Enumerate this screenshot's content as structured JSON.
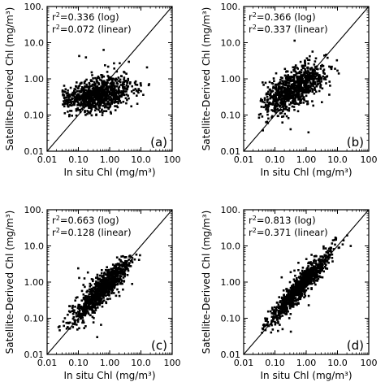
{
  "figure": {
    "x_ticks": [
      "0.01",
      "0.10",
      "1.00",
      "10.0",
      "100"
    ],
    "y_ticks": [
      "0.01",
      "0.10",
      "1.00",
      "10.0",
      "100."
    ]
  },
  "chart_data": [
    {
      "type": "scatter",
      "panel": "(a)",
      "xlabel": "In situ Chl (mg/m³)",
      "ylabel": "Satellite-Derived Chl (mg/m³)",
      "xscale": "log",
      "yscale": "log",
      "xlim": [
        0.01,
        100
      ],
      "ylim": [
        0.01,
        100
      ],
      "annotations": [
        {
          "r2": "0.336",
          "method": "(log)"
        },
        {
          "r2": "0.072",
          "method": "(linear)"
        }
      ],
      "reference_line": "1:1",
      "cloud": {
        "n": 950,
        "x_center_log10": -0.4,
        "x_sd": 0.55,
        "y_center_log10": -0.45,
        "y_sd": 0.22,
        "slope": 0.15,
        "x_min": 0.03,
        "x_max": 60,
        "y_min": 0.09,
        "y_max": 70,
        "seed": 11
      }
    },
    {
      "type": "scatter",
      "panel": "(b)",
      "xlabel": "In situ Chl (mg/m³)",
      "ylabel": "Satellite-Derived Chl (mg/m³)",
      "xscale": "log",
      "yscale": "log",
      "xlim": [
        0.01,
        100
      ],
      "ylim": [
        0.01,
        100
      ],
      "annotations": [
        {
          "r2": "0.366",
          "method": "(log)"
        },
        {
          "r2": "0.337",
          "method": "(linear)"
        }
      ],
      "reference_line": "1:1",
      "cloud": {
        "n": 950,
        "x_center_log10": -0.45,
        "x_sd": 0.5,
        "y_center_log10": -0.3,
        "y_sd": 0.24,
        "slope": 0.45,
        "x_min": 0.03,
        "x_max": 30,
        "y_min": 0.015,
        "y_max": 30,
        "seed": 23
      }
    },
    {
      "type": "scatter",
      "panel": "(c)",
      "xlabel": "In situ Chl (mg/m³)",
      "ylabel": "Satellite-Derived Chl (mg/m³)",
      "xscale": "log",
      "yscale": "log",
      "xlim": [
        0.01,
        100
      ],
      "ylim": [
        0.01,
        100
      ],
      "annotations": [
        {
          "r2": "0.663",
          "method": "(log)"
        },
        {
          "r2": "0.128",
          "method": "(linear)"
        }
      ],
      "reference_line": "1:1",
      "cloud": {
        "n": 1000,
        "x_center_log10": -0.25,
        "x_sd": 0.5,
        "y_center_log10": -0.2,
        "y_sd": 0.2,
        "slope": 0.85,
        "x_min": 0.02,
        "x_max": 40,
        "y_min": 0.03,
        "y_max": 6,
        "seed": 37
      }
    },
    {
      "type": "scatter",
      "panel": "(d)",
      "xlabel": "In situ Chl (mg/m³)",
      "ylabel": "Satellite-Derived Chl (mg/m³)",
      "xscale": "log",
      "yscale": "log",
      "xlim": [
        0.01,
        100
      ],
      "ylim": [
        0.01,
        100
      ],
      "annotations": [
        {
          "r2": "0.813",
          "method": "(log)"
        },
        {
          "r2": "0.371",
          "method": "(linear)"
        }
      ],
      "reference_line": "1:1",
      "cloud": {
        "n": 1000,
        "x_center_log10": -0.2,
        "x_sd": 0.5,
        "y_center_log10": -0.15,
        "y_sd": 0.17,
        "slope": 0.95,
        "x_min": 0.03,
        "x_max": 40,
        "y_min": 0.03,
        "y_max": 25,
        "seed": 53
      }
    }
  ]
}
